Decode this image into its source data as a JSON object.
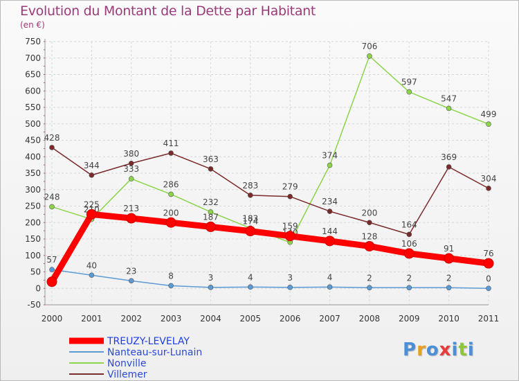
{
  "chart_data": {
    "type": "line",
    "title": "Evolution du Montant de la Dette par Habitant",
    "subtitle": "(en €)",
    "x": [
      "2000",
      "2001",
      "2002",
      "2003",
      "2004",
      "2005",
      "2006",
      "2007",
      "2008",
      "2009",
      "2010",
      "2011"
    ],
    "ylim": [
      -50,
      750
    ],
    "yticks": [
      -50,
      0,
      50,
      100,
      150,
      200,
      250,
      300,
      350,
      400,
      450,
      500,
      550,
      600,
      650,
      700,
      750
    ],
    "grid": true,
    "legend_position": "bottom-left",
    "series": [
      {
        "name": "TREUZY-LEVELAY",
        "color": "#ff0000",
        "values": [
          20,
          225,
          213,
          200,
          187,
          174,
          159,
          144,
          128,
          106,
          91,
          76
        ],
        "labels": [
          null,
          "225",
          "213",
          "200",
          "187",
          "174",
          "159",
          "144",
          "128",
          "106",
          "91",
          "76"
        ]
      },
      {
        "name": "Nanteau-sur-Lunain",
        "color": "#5b9bd5",
        "values": [
          57,
          40,
          23,
          8,
          3,
          4,
          3,
          4,
          2,
          2,
          2,
          0
        ],
        "labels": [
          "57",
          "40",
          "23",
          "8",
          "3",
          "4",
          "3",
          "4",
          "2",
          "2",
          "2",
          "0"
        ]
      },
      {
        "name": "Nonville",
        "color": "#8cd44a",
        "values": [
          248,
          210,
          333,
          286,
          232,
          183,
          140,
          374,
          706,
          597,
          547,
          499
        ],
        "labels": [
          "248",
          "210",
          "333",
          "286",
          "232",
          "183",
          "140",
          "374",
          "706",
          "597",
          "547",
          "499"
        ]
      },
      {
        "name": "Villemer",
        "color": "#7a2a2a",
        "values": [
          428,
          344,
          380,
          411,
          363,
          283,
          279,
          234,
          200,
          164,
          369,
          304
        ],
        "labels": [
          "428",
          "344",
          "380",
          "411",
          "363",
          "283",
          "279",
          "234",
          "200",
          "164",
          "369",
          "304"
        ]
      }
    ]
  },
  "logo": {
    "letters": [
      "P",
      "r",
      "o",
      "x",
      "i",
      "t",
      "i"
    ],
    "colors": [
      "#4a90d9",
      "#e8a020",
      "#4a90d9",
      "#e83a3a",
      "#4a90d9",
      "#8cc83a",
      "#4a90d9"
    ]
  }
}
